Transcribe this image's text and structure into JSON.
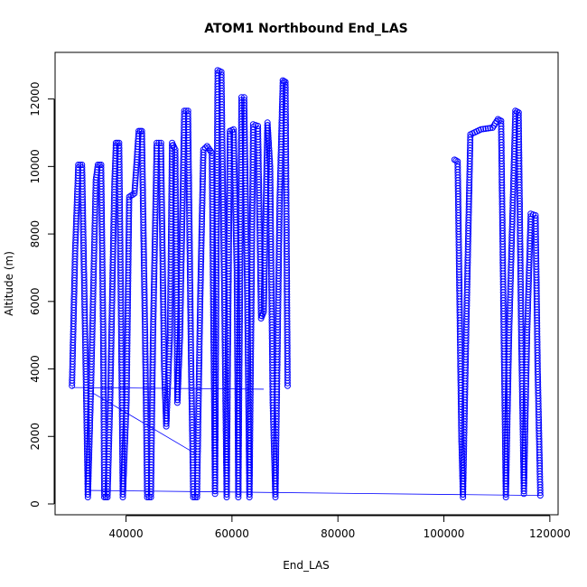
{
  "chart_data": {
    "type": "scatter",
    "title": "ATOM1 Northbound End_LAS",
    "xlabel": "End_LAS",
    "ylabel": "Altitude (m)",
    "xlim": [
      29000,
      119000
    ],
    "ylim": [
      0,
      12900
    ],
    "x_ticks": [
      40000,
      60000,
      80000,
      100000,
      120000
    ],
    "x_tick_labels": [
      "40000",
      "60000",
      "80000",
      "100000",
      "120000"
    ],
    "y_ticks": [
      0,
      2000,
      4000,
      6000,
      8000,
      10000,
      12000
    ],
    "y_tick_labels": [
      "0",
      "2000",
      "4000",
      "6000",
      "8000",
      "10000",
      "12000"
    ],
    "grid": false,
    "legend": "none",
    "color": "#0000ff",
    "series": [
      {
        "values": [
          [
            29800,
            3500
          ],
          [
            30400,
            7500
          ],
          [
            31000,
            10050
          ],
          [
            31700,
            10050
          ],
          [
            32400,
            4000
          ],
          [
            32800,
            200
          ],
          [
            33400,
            3500
          ],
          [
            34300,
            9600
          ],
          [
            34700,
            10050
          ],
          [
            35300,
            10050
          ],
          [
            35700,
            5000
          ],
          [
            35900,
            200
          ],
          [
            36500,
            200
          ],
          [
            37000,
            3000
          ],
          [
            37800,
            9400
          ],
          [
            38100,
            10700
          ],
          [
            38700,
            10700
          ],
          [
            39100,
            5000
          ],
          [
            39400,
            200
          ],
          [
            40100,
            3000
          ],
          [
            40600,
            9100
          ],
          [
            41600,
            9200
          ],
          [
            42400,
            11050
          ],
          [
            43000,
            11050
          ],
          [
            43600,
            5000
          ],
          [
            44000,
            200
          ],
          [
            44700,
            200
          ],
          [
            45100,
            5000
          ],
          [
            45800,
            10700
          ],
          [
            46600,
            10700
          ],
          [
            47200,
            4000
          ],
          [
            47600,
            2300
          ],
          [
            48300,
            5000
          ],
          [
            48700,
            10700
          ],
          [
            49300,
            10500
          ],
          [
            49700,
            3000
          ],
          [
            50200,
            5000
          ],
          [
            51000,
            11650
          ],
          [
            51700,
            11650
          ],
          [
            52300,
            4000
          ],
          [
            52700,
            200
          ],
          [
            53400,
            200
          ],
          [
            54000,
            6000
          ],
          [
            54600,
            10500
          ],
          [
            55300,
            10600
          ],
          [
            56200,
            10400
          ],
          [
            56800,
            300
          ],
          [
            57300,
            12850
          ],
          [
            58000,
            12800
          ],
          [
            58600,
            5500
          ],
          [
            59000,
            200
          ],
          [
            59600,
            11050
          ],
          [
            60300,
            11100
          ],
          [
            60900,
            7000
          ],
          [
            61200,
            200
          ],
          [
            61800,
            12050
          ],
          [
            62300,
            12050
          ],
          [
            62900,
            6000
          ],
          [
            63300,
            200
          ],
          [
            64000,
            11250
          ],
          [
            64900,
            11200
          ],
          [
            65500,
            5500
          ],
          [
            66000,
            5700
          ],
          [
            66700,
            11300
          ],
          [
            67200,
            10000
          ],
          [
            67700,
            3000
          ],
          [
            68200,
            200
          ],
          [
            69000,
            9000
          ],
          [
            69600,
            12550
          ],
          [
            70100,
            12500
          ],
          [
            70500,
            3500
          ]
        ]
      },
      {
        "values": [
          [
            102000,
            10200
          ],
          [
            102600,
            10150
          ],
          [
            103300,
            2000
          ],
          [
            103600,
            200
          ],
          [
            104200,
            5000
          ],
          [
            105000,
            10950
          ],
          [
            107000,
            11100
          ],
          [
            109200,
            11150
          ],
          [
            110200,
            11400
          ],
          [
            110800,
            11350
          ],
          [
            111300,
            5000
          ],
          [
            111700,
            200
          ],
          [
            112300,
            5000
          ],
          [
            113500,
            11650
          ],
          [
            114100,
            11600
          ],
          [
            114600,
            5000
          ],
          [
            115100,
            300
          ],
          [
            115700,
            5000
          ],
          [
            116400,
            8600
          ],
          [
            117300,
            8550
          ],
          [
            117700,
            4000
          ],
          [
            118200,
            250
          ]
        ]
      }
    ],
    "connector_lines": [
      [
        [
          29800,
          3450
        ],
        [
          66000,
          3400
        ]
      ],
      [
        [
          33600,
          3300
        ],
        [
          53000,
          1500
        ]
      ],
      [
        [
          33000,
          400
        ],
        [
          118000,
          250
        ]
      ]
    ]
  }
}
